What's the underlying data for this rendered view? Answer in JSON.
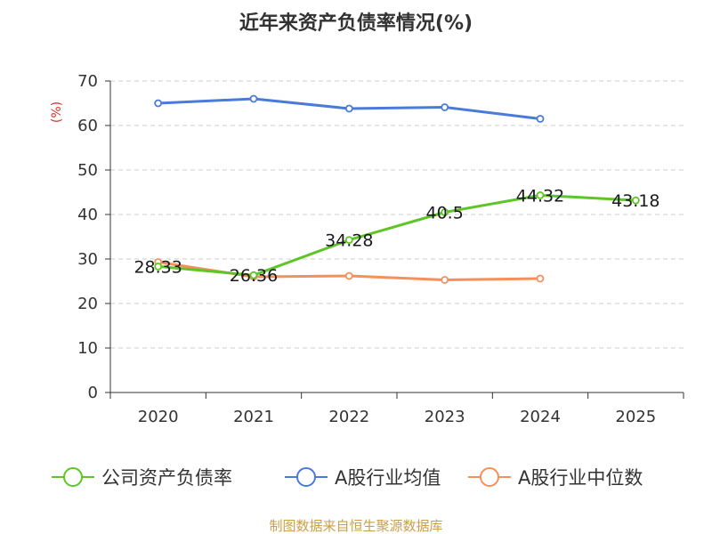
{
  "chart_data": {
    "type": "line",
    "title": "近年来资产负债率情况(%)",
    "ylabel": "(%)",
    "xlabel": "",
    "ylim": [
      0,
      70
    ],
    "yticks": [
      0,
      10,
      20,
      30,
      40,
      50,
      60,
      70
    ],
    "categories": [
      "2020",
      "2021",
      "2022",
      "2023",
      "2024",
      "2025"
    ],
    "grid": true,
    "legend_position": "bottom",
    "series": [
      {
        "name": "公司资产负债率",
        "color": "#5dc528",
        "values": [
          28.33,
          26.36,
          34.28,
          40.5,
          44.32,
          43.18
        ],
        "labels": [
          "28.33",
          "26.36",
          "34.28",
          "40.5",
          "44.32",
          "43.18"
        ]
      },
      {
        "name": "A股行业均值",
        "color": "#4a7bd8",
        "values": [
          65.0,
          66.0,
          63.8,
          64.1,
          61.5,
          null
        ],
        "labels": []
      },
      {
        "name": "A股行业中位数",
        "color": "#f5905a",
        "values": [
          29.3,
          26.0,
          26.2,
          25.3,
          25.6,
          null
        ],
        "labels": []
      }
    ]
  },
  "source": {
    "text": "制图数据来自恒生聚源数据库",
    "color": "#c8a04a"
  },
  "colors": {
    "unit_label": "#d9302c",
    "axis": "#333333",
    "grid": "#cccccc"
  }
}
